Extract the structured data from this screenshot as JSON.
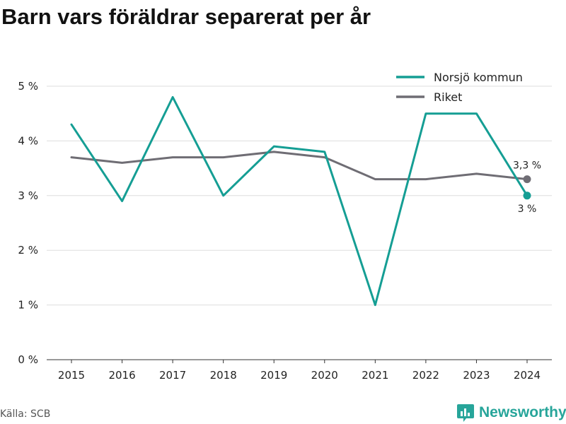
{
  "title": "Barn vars föräldrar separerat per år",
  "source": "Källa: SCB",
  "brand": {
    "name": "Newsworthy",
    "icon": "newsworthy-logo-icon"
  },
  "colors": {
    "primary": "#159e94",
    "secondary": "#6f6d74",
    "grid": "#dddddd",
    "axis": "#333333"
  },
  "chart_data": {
    "type": "line",
    "x": [
      "2015",
      "2016",
      "2017",
      "2018",
      "2019",
      "2020",
      "2021",
      "2022",
      "2023",
      "2024"
    ],
    "series": [
      {
        "name": "Norsjö kommun",
        "color": "#159e94",
        "values": [
          4.3,
          2.9,
          4.8,
          3.0,
          3.9,
          3.8,
          1.0,
          4.5,
          4.5,
          3.0
        ],
        "end_label": "3 %"
      },
      {
        "name": "Riket",
        "color": "#6f6d74",
        "values": [
          3.7,
          3.6,
          3.7,
          3.7,
          3.8,
          3.7,
          3.3,
          3.3,
          3.4,
          3.3
        ],
        "end_label": "3,3 %"
      }
    ],
    "yticks": [
      0,
      1,
      2,
      3,
      4,
      5
    ],
    "ytick_labels": [
      "0 %",
      "1 %",
      "2 %",
      "3 %",
      "4 %",
      "5 %"
    ],
    "ylim": [
      0,
      5
    ],
    "grid": true,
    "legend_position": "top-right"
  }
}
